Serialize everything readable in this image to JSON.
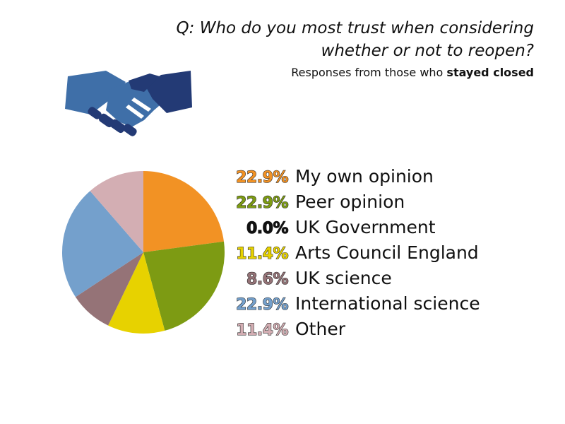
{
  "header": {
    "question_line1": "Q: Who do you most trust when considering",
    "question_line2": "whether or not to reopen?",
    "subtitle_prefix": "Responses from those who ",
    "subtitle_bold": "stayed closed"
  },
  "icon": {
    "name": "handshake-icon",
    "colors": [
      "#3f6fa8",
      "#233a75"
    ]
  },
  "chart_data": {
    "type": "pie",
    "title": "Q: Who do you most trust when considering whether or not to reopen?",
    "subtitle": "Responses from those who stayed closed",
    "legend_position": "right",
    "slices": [
      {
        "label": "My own opinion",
        "value": 22.9,
        "value_label": "22.9%",
        "color": "#f29224"
      },
      {
        "label": "Peer opinion",
        "value": 22.9,
        "value_label": "22.9%",
        "color": "#7d9b13"
      },
      {
        "label": "UK Government",
        "value": 0.0,
        "value_label": "0.0%",
        "color": "#111111"
      },
      {
        "label": "Arts Council England",
        "value": 11.4,
        "value_label": "11.4%",
        "color": "#e7d200"
      },
      {
        "label": "UK science",
        "value": 8.6,
        "value_label": "8.6%",
        "color": "#957377"
      },
      {
        "label": "International science",
        "value": 22.9,
        "value_label": "22.9%",
        "color": "#74a0cc"
      },
      {
        "label": "Other",
        "value": 11.4,
        "value_label": "11.4%",
        "color": "#d3aeb3"
      }
    ]
  }
}
